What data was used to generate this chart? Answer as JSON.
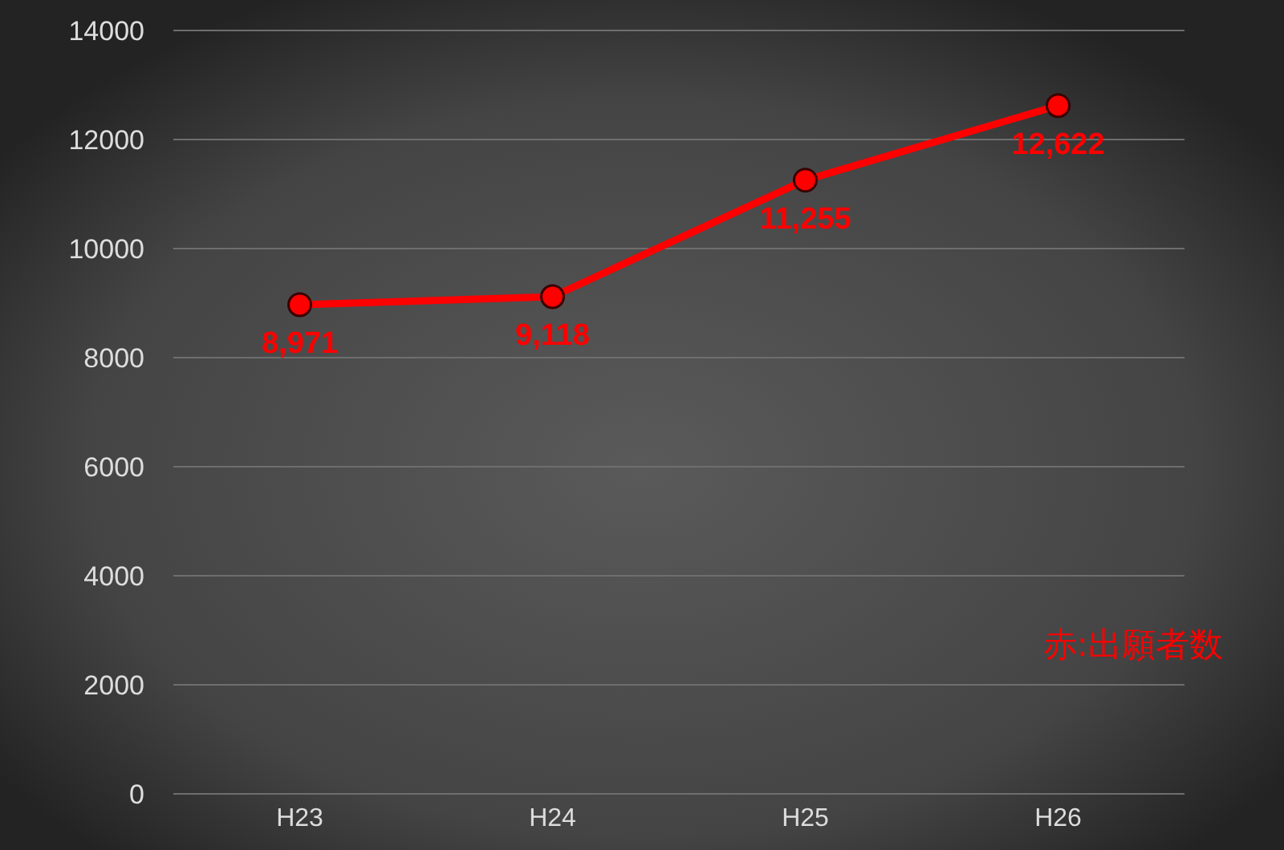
{
  "chart_data": {
    "type": "line",
    "categories": [
      "H23",
      "H24",
      "H25",
      "H26"
    ],
    "series": [
      {
        "name": "赤:出願者数",
        "color": "#ff0000",
        "values": [
          8971,
          9118,
          11255,
          12622
        ],
        "value_labels": [
          "8,971",
          "9,118",
          "11,255",
          "12,622"
        ]
      }
    ],
    "ylim": [
      0,
      14000
    ],
    "yticks": [
      0,
      2000,
      4000,
      6000,
      8000,
      10000,
      12000,
      14000
    ],
    "grid": "y",
    "legend": "bottom right",
    "marker": "circle",
    "line_style": "solid"
  }
}
